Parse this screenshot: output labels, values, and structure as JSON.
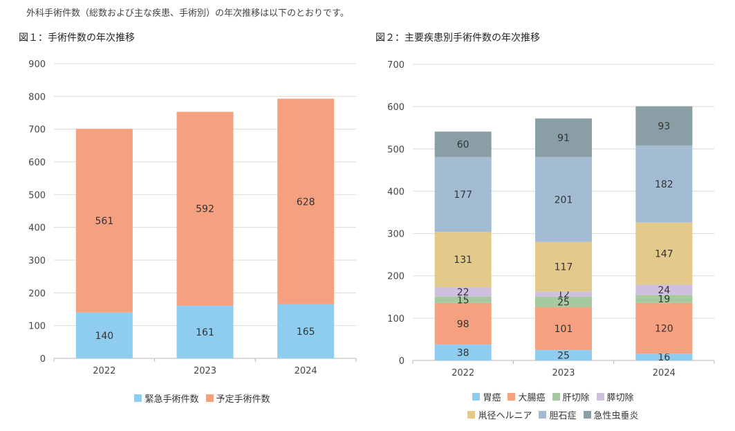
{
  "intro": "外科手術件数（総数および主な疾患、手術別）の年次推移は以下のとおりです。",
  "chart_data": [
    {
      "type": "bar",
      "stacked": true,
      "title": "図１：手術件数の年次推移",
      "categories": [
        "2022",
        "2023",
        "2024"
      ],
      "series": [
        {
          "name": "緊急手術件数",
          "color": "#8ecdf0",
          "values": [
            140,
            161,
            165
          ]
        },
        {
          "name": "予定手術件数",
          "color": "#f5a080",
          "values": [
            561,
            592,
            628
          ]
        }
      ],
      "ylim": [
        0,
        900
      ],
      "yticks": [
        0,
        100,
        200,
        300,
        400,
        500,
        600,
        700,
        800,
        900
      ],
      "grid": true,
      "legend_position": "bottom"
    },
    {
      "type": "bar",
      "stacked": true,
      "title": "図２：主要疾患別手術件数の年次推移",
      "categories": [
        "2022",
        "2023",
        "2024"
      ],
      "series": [
        {
          "name": "胃癌",
          "color": "#8ecdf0",
          "values": [
            38,
            25,
            16
          ]
        },
        {
          "name": "大腸癌",
          "color": "#f5a080",
          "values": [
            98,
            101,
            120
          ]
        },
        {
          "name": "肝切除",
          "color": "#a6c9a0",
          "values": [
            15,
            25,
            19
          ]
        },
        {
          "name": "膵切除",
          "color": "#cfc0e0",
          "values": [
            22,
            12,
            24
          ]
        },
        {
          "name": "鼡径ヘルニア",
          "color": "#e3c98a",
          "values": [
            131,
            117,
            147
          ]
        },
        {
          "name": "胆石症",
          "color": "#a3bcd3",
          "values": [
            177,
            201,
            182
          ]
        },
        {
          "name": "急性虫垂炎",
          "color": "#8a9ea5",
          "values": [
            60,
            91,
            93
          ]
        }
      ],
      "ylim": [
        0,
        700
      ],
      "yticks": [
        0,
        100,
        200,
        300,
        400,
        500,
        600,
        700
      ],
      "grid": true,
      "legend_position": "bottom"
    }
  ]
}
